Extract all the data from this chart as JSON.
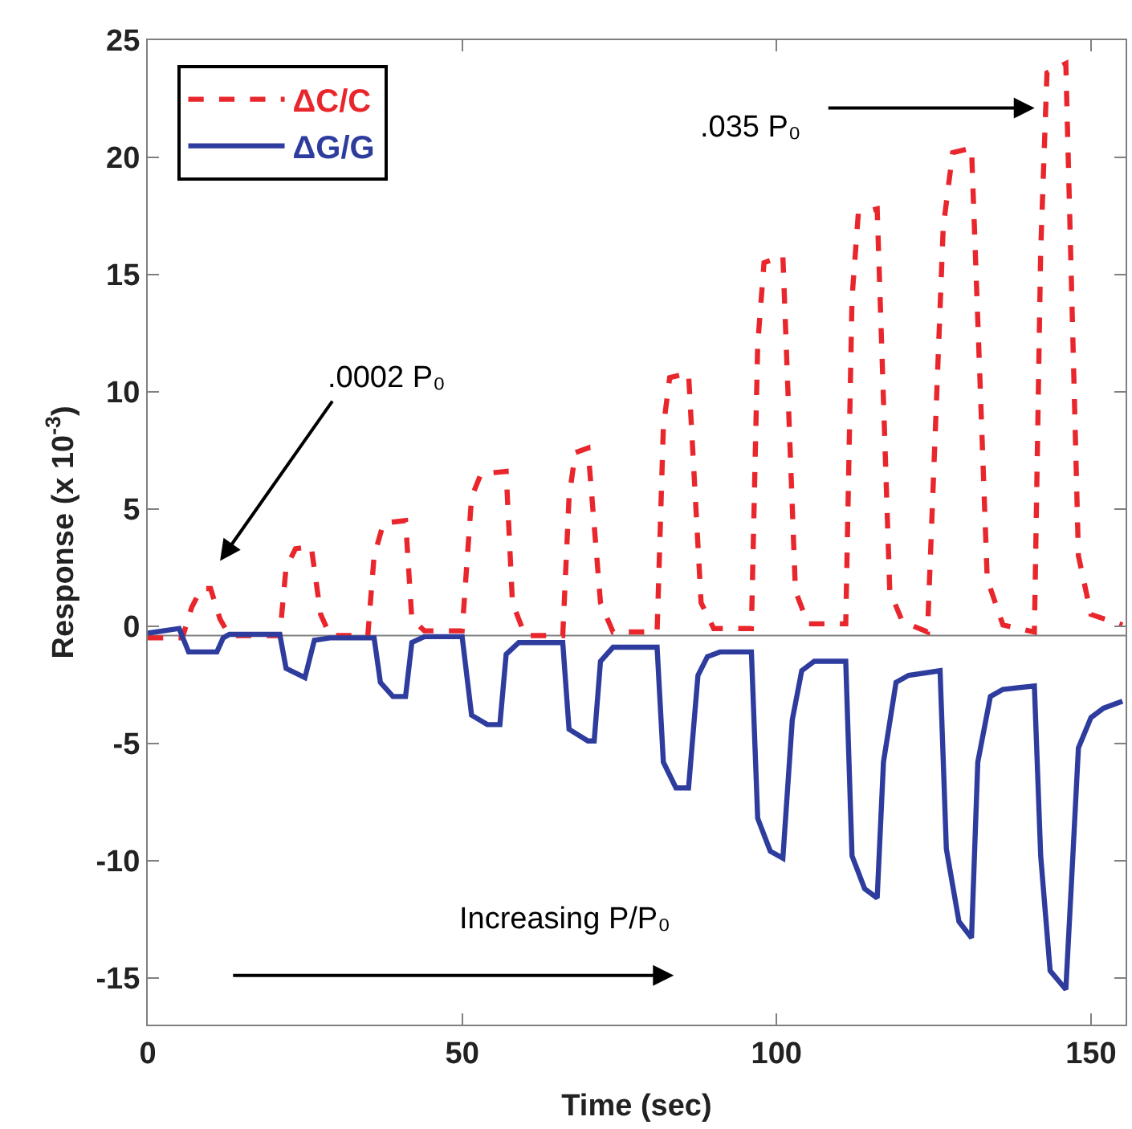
{
  "chart_data": {
    "type": "line",
    "xlabel": "Time (sec)",
    "ylabel": "Response (x 10$^{-3}$)",
    "xlim": [
      0,
      155.5
    ],
    "xticks": [
      0,
      50,
      100,
      150
    ],
    "ylim": [
      -17,
      25
    ],
    "yticks": [
      -15,
      -10,
      -5,
      0,
      5,
      10,
      15,
      20,
      25
    ],
    "grid": false,
    "legend": "top left",
    "marker": "none",
    "ref_lines": [
      {
        "axis": "y",
        "value": -0.4,
        "color": "#808080"
      }
    ],
    "annotations": [
      ".035 P₀",
      ".0002 P₀",
      "Increasing P/P₀"
    ],
    "series": [
      {
        "name": "ΔC/C",
        "color": "#e8262c",
        "line_style": "dashed",
        "x": [
          0,
          5.5,
          7,
          8.5,
          10,
          11.5,
          13,
          21,
          22,
          23.5,
          26,
          27.5,
          29,
          35,
          36,
          37.5,
          41,
          42,
          44,
          50,
          51.5,
          53,
          57,
          58,
          60,
          66,
          67,
          68,
          70,
          72,
          74,
          81,
          82,
          83,
          86,
          88,
          90,
          96,
          97,
          98,
          101,
          103,
          105,
          111,
          112,
          113,
          116,
          118,
          120,
          124,
          126.5,
          128,
          131,
          133.5,
          136,
          141,
          142,
          143,
          146,
          148,
          150,
          155
        ],
        "values": [
          -0.5,
          -0.5,
          0.8,
          1.6,
          1.6,
          0.3,
          -0.4,
          -0.4,
          2.5,
          3.3,
          3.4,
          0.5,
          -0.4,
          -0.4,
          3,
          4.4,
          4.5,
          0.3,
          -0.2,
          -0.2,
          5.5,
          6.5,
          6.6,
          1,
          -0.4,
          -0.4,
          5.5,
          7.4,
          7.6,
          1,
          -0.25,
          -0.25,
          8.5,
          10.6,
          10.8,
          1,
          -0.1,
          -0.1,
          12,
          15.5,
          15.8,
          1.5,
          0.1,
          0.1,
          14,
          17.6,
          17.8,
          1.5,
          0.2,
          -0.25,
          17,
          20.2,
          20.4,
          2,
          0.05,
          -0.25,
          16,
          23.6,
          24,
          3,
          0.5,
          0.05
        ]
      },
      {
        "name": "ΔG/G",
        "color": "#2e3c9e",
        "line_style": "solid",
        "x": [
          0,
          5,
          6.5,
          11,
          12,
          13,
          21,
          22,
          25,
          26.5,
          29,
          36,
          37,
          39,
          41,
          42,
          44,
          50,
          51.5,
          54,
          56,
          57,
          59,
          66,
          67,
          70,
          71,
          72,
          74,
          81,
          82,
          84,
          86,
          87.5,
          89,
          91,
          96,
          97,
          99,
          101,
          102.5,
          104,
          106,
          111,
          112,
          114,
          116,
          117,
          119,
          121,
          126,
          127,
          129,
          131,
          132,
          134,
          136,
          141,
          142,
          143.5,
          146,
          147,
          148,
          150,
          152,
          155
        ],
        "values": [
          -0.3,
          -0.1,
          -1.1,
          -1.1,
          -0.5,
          -0.35,
          -0.35,
          -1.8,
          -2.2,
          -0.6,
          -0.5,
          -0.5,
          -2.4,
          -3,
          -3,
          -0.7,
          -0.45,
          -0.45,
          -3.8,
          -4.2,
          -4.2,
          -1.2,
          -0.7,
          -0.7,
          -4.4,
          -4.9,
          -4.9,
          -1.5,
          -0.9,
          -0.9,
          -5.8,
          -6.9,
          -6.9,
          -2.1,
          -1.3,
          -1.1,
          -1.1,
          -8.2,
          -9.6,
          -9.9,
          -4,
          -1.9,
          -1.5,
          -1.5,
          -9.8,
          -11.2,
          -11.6,
          -5.8,
          -2.4,
          -2.1,
          -1.9,
          -9.5,
          -12.6,
          -13.3,
          -5.8,
          -3,
          -2.7,
          -2.55,
          -9.8,
          -14.7,
          -15.5,
          -10.4,
          -5.2,
          -3.9,
          -3.5,
          -3.2
        ]
      }
    ]
  }
}
